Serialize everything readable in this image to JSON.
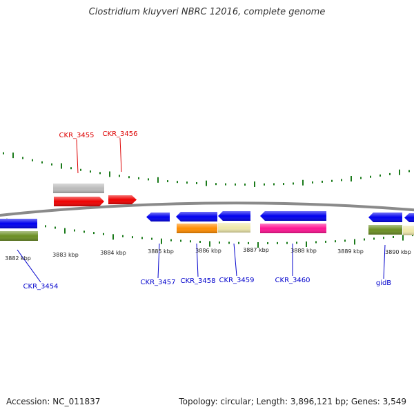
{
  "title": "Clostridium kluyveri NBRC 12016, complete genome",
  "footer": {
    "accession": "Accession: NC_011837",
    "summary": "Topology: circular; Length: 3,896,121 bp; Genes: 3,549"
  },
  "scale_labels": [
    "3882 kbp",
    "3883 kbp",
    "3884 kbp",
    "3885 kbp",
    "3886 kbp",
    "3887 kbp",
    "3888 kbp",
    "3889 kbp",
    "3890 kbp"
  ],
  "gene_labels": [
    "CKR_3455",
    "CKR_3456",
    "CKR_3454",
    "CKR_3457",
    "CKR_3458",
    "CKR_3459",
    "CKR_3460",
    "gidB"
  ],
  "colors": {
    "backbone": "#8a8a8a",
    "ticks": "#1a7a1a",
    "forward_label": "#dd0000",
    "reverse_label": "#0000cc",
    "blue": "#0000ee",
    "red": "#ee0000",
    "grey": "#bbbbbb",
    "olive": "#6b8e23",
    "orange": "#ff8c00",
    "khaki": "#eee8aa",
    "magenta": "#ff1493"
  }
}
